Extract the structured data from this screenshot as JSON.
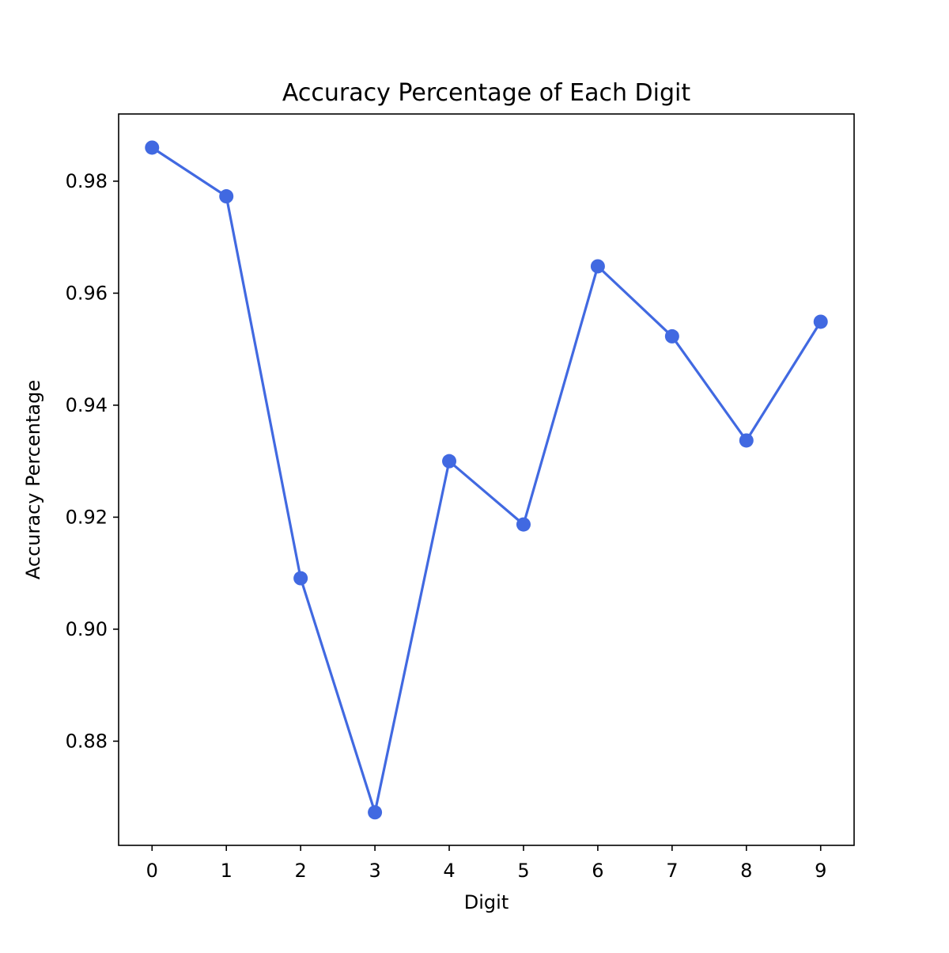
{
  "chart_data": {
    "type": "line",
    "title": "Accuracy Percentage of Each Digit",
    "xlabel": "Digit",
    "ylabel": "Accuracy Percentage",
    "x": [
      0,
      1,
      2,
      3,
      4,
      5,
      6,
      7,
      8,
      9
    ],
    "series": [
      {
        "values": [
          0.986,
          0.9773,
          0.9091,
          0.8673,
          0.93,
          0.9187,
          0.9648,
          0.9523,
          0.9337,
          0.9549
        ],
        "color": "#4169e1",
        "marker": "circle"
      }
    ],
    "xticks": [
      "0",
      "1",
      "2",
      "3",
      "4",
      "5",
      "6",
      "7",
      "8",
      "9"
    ],
    "yticks": [
      0.88,
      0.9,
      0.92,
      0.94,
      0.96,
      0.98
    ],
    "ytick_labels": [
      "0.88",
      "0.90",
      "0.92",
      "0.94",
      "0.96",
      "0.98"
    ],
    "xlim": [
      -0.45,
      9.45
    ],
    "ylim": [
      0.8614,
      0.992
    ],
    "grid": false,
    "legend": "none"
  }
}
